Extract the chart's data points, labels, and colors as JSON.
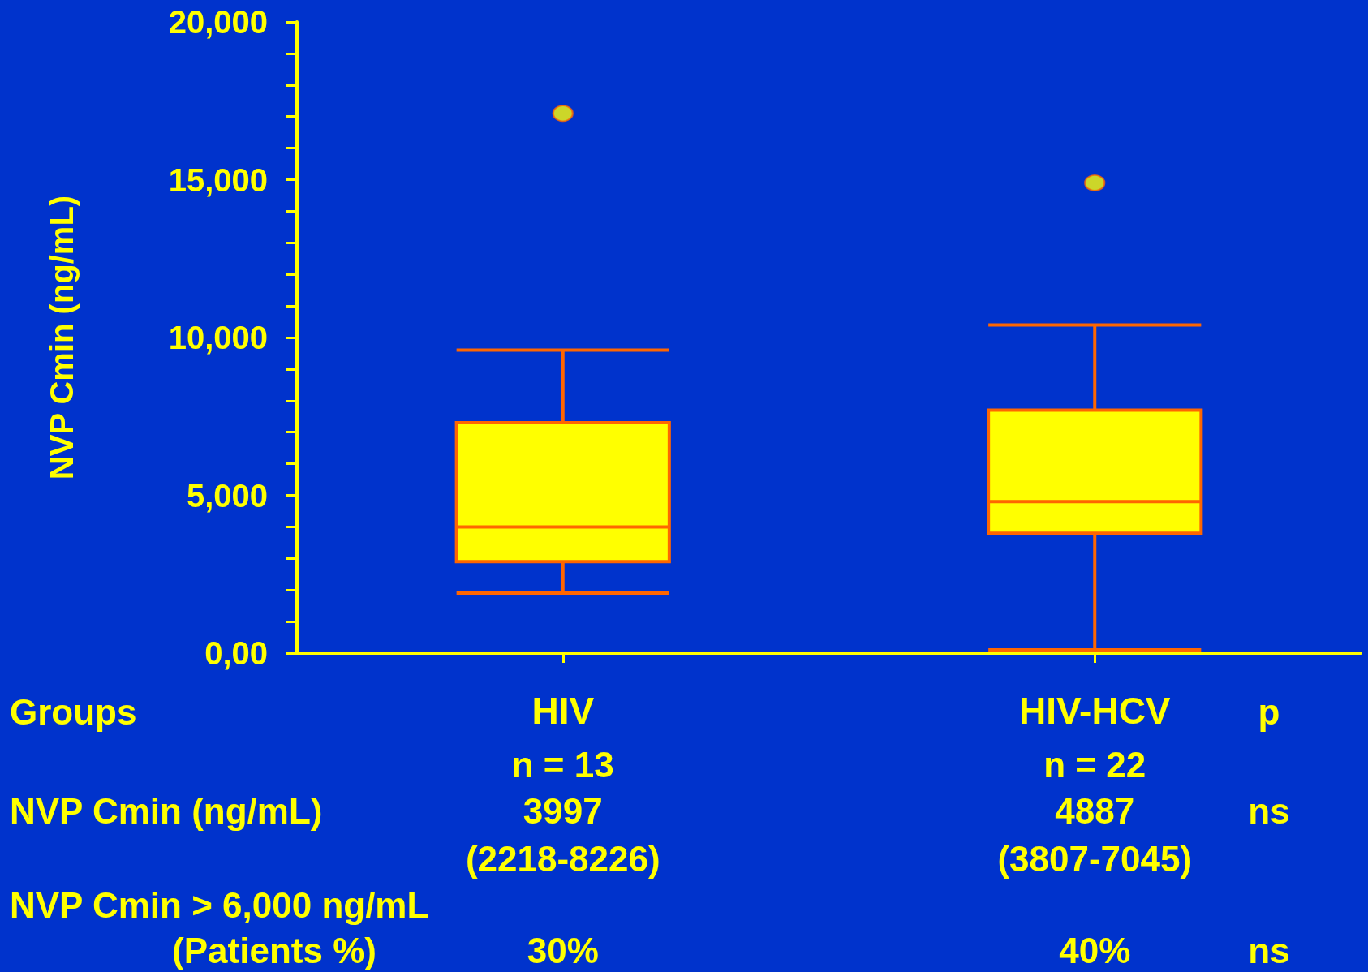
{
  "chart_data": {
    "type": "box",
    "ylabel": "NVP Cmin (ng/mL)",
    "categories": [
      "HIV",
      "HIV-HCV"
    ],
    "series": [
      {
        "color": "#ffff00",
        "boxes": [
          {
            "low": 1900,
            "q1": 2900,
            "median": 4000,
            "q3": 7300,
            "high": 9600,
            "outliers": [
              17100
            ]
          },
          {
            "low": 100,
            "q1": 3800,
            "median": 4800,
            "q3": 7700,
            "high": 10400,
            "outliers": [
              14900
            ]
          }
        ]
      }
    ],
    "ylim": [
      0,
      20000
    ],
    "yticks": [
      {
        "value": 0,
        "label": "0,00"
      },
      {
        "value": 1000,
        "label": null
      },
      {
        "value": 2000,
        "label": null
      },
      {
        "value": 3000,
        "label": null
      },
      {
        "value": 4000,
        "label": null
      },
      {
        "value": 5000,
        "label": "5,000"
      },
      {
        "value": 6000,
        "label": null
      },
      {
        "value": 7000,
        "label": null
      },
      {
        "value": 8000,
        "label": null
      },
      {
        "value": 9000,
        "label": null
      },
      {
        "value": 10000,
        "label": "10,000"
      },
      {
        "value": 11000,
        "label": null
      },
      {
        "value": 12000,
        "label": null
      },
      {
        "value": 13000,
        "label": null
      },
      {
        "value": 14000,
        "label": null
      },
      {
        "value": 15000,
        "label": "15,000"
      },
      {
        "value": 16000,
        "label": null
      },
      {
        "value": 17000,
        "label": null
      },
      {
        "value": 18000,
        "label": null
      },
      {
        "value": 19000,
        "label": null
      },
      {
        "value": 20000,
        "label": "20,000"
      }
    ],
    "grid": false,
    "annotations": [
      "Groups",
      "p",
      "n = 13",
      "n = 22",
      "NVP Cmin (ng/mL)",
      "3997",
      "4887",
      "ns",
      "(2218-8226)",
      "(3807-7045)",
      "NVP Cmin > 6,000 ng/mL",
      "(Patients %)",
      "30%",
      "40%",
      "ns"
    ]
  }
}
